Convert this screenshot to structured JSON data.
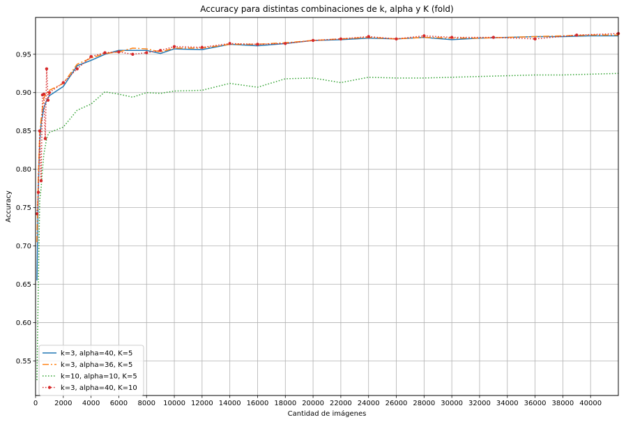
{
  "chart_data": {
    "type": "line",
    "title": "Accuracy para distintas combinaciones de k, alpha y K (fold)",
    "xlabel": "Cantidad de imágenes",
    "ylabel": "Accuracy",
    "xlim": [
      0,
      42000
    ],
    "ylim": [
      0.505,
      0.998
    ],
    "xticks": [
      0,
      2000,
      4000,
      6000,
      8000,
      10000,
      12000,
      14000,
      16000,
      18000,
      20000,
      22000,
      24000,
      26000,
      28000,
      30000,
      32000,
      34000,
      36000,
      38000,
      40000
    ],
    "yticks": [
      0.55,
      0.6,
      0.65,
      0.7,
      0.75,
      0.8,
      0.85,
      0.9,
      0.95
    ],
    "grid": true,
    "legend_position": "lower-left",
    "series": [
      {
        "name": "k=3, alpha=40, K=5",
        "color": "#1f77b4",
        "style": "solid",
        "x": [
          100,
          200,
          300,
          400,
          500,
          600,
          700,
          800,
          900,
          1000,
          2000,
          3000,
          4000,
          5000,
          6000,
          7000,
          8000,
          9000,
          10000,
          12000,
          14000,
          16000,
          18000,
          20000,
          22000,
          24000,
          26000,
          28000,
          30000,
          32000,
          34000,
          36000,
          38000,
          40000,
          42000
        ],
        "y": [
          0.655,
          0.775,
          0.835,
          0.86,
          0.87,
          0.88,
          0.885,
          0.89,
          0.893,
          0.896,
          0.908,
          0.935,
          0.942,
          0.95,
          0.955,
          0.955,
          0.955,
          0.951,
          0.957,
          0.956,
          0.963,
          0.961,
          0.964,
          0.968,
          0.969,
          0.971,
          0.97,
          0.972,
          0.969,
          0.971,
          0.972,
          0.973,
          0.973,
          0.974,
          0.974
        ]
      },
      {
        "name": "k=3, alpha=36, K=5",
        "color": "#ff7f0e",
        "style": "dashdot",
        "x": [
          100,
          200,
          300,
          400,
          500,
          600,
          700,
          800,
          900,
          1000,
          2000,
          3000,
          4000,
          5000,
          6000,
          7000,
          8000,
          9000,
          10000,
          12000,
          14000,
          16000,
          18000,
          20000,
          22000,
          24000,
          26000,
          28000,
          30000,
          32000,
          34000,
          36000,
          38000,
          40000,
          42000
        ],
        "y": [
          0.705,
          0.79,
          0.845,
          0.865,
          0.88,
          0.893,
          0.897,
          0.9,
          0.9,
          0.903,
          0.912,
          0.937,
          0.945,
          0.951,
          0.953,
          0.958,
          0.957,
          0.953,
          0.958,
          0.958,
          0.963,
          0.963,
          0.965,
          0.968,
          0.97,
          0.972,
          0.97,
          0.972,
          0.971,
          0.971,
          0.972,
          0.973,
          0.974,
          0.975,
          0.975
        ]
      },
      {
        "name": "k=10, alpha=10, K=5",
        "color": "#2ca02c",
        "style": "dotted",
        "x": [
          100,
          200,
          300,
          400,
          500,
          600,
          700,
          800,
          900,
          1000,
          2000,
          3000,
          4000,
          5000,
          6000,
          7000,
          8000,
          9000,
          10000,
          12000,
          14000,
          16000,
          18000,
          20000,
          22000,
          24000,
          26000,
          28000,
          30000,
          32000,
          34000,
          36000,
          38000,
          40000,
          42000
        ],
        "y": [
          0.525,
          0.65,
          0.76,
          0.775,
          0.8,
          0.82,
          0.83,
          0.84,
          0.845,
          0.848,
          0.855,
          0.877,
          0.885,
          0.901,
          0.898,
          0.894,
          0.9,
          0.899,
          0.902,
          0.903,
          0.912,
          0.907,
          0.918,
          0.919,
          0.913,
          0.92,
          0.919,
          0.919,
          0.92,
          0.921,
          0.922,
          0.923,
          0.923,
          0.924,
          0.925
        ]
      },
      {
        "name": "k=3, alpha=40, K=10",
        "color": "#d62728",
        "style": "dotted-markers",
        "x": [
          100,
          200,
          300,
          400,
          500,
          600,
          700,
          800,
          900,
          1000,
          2000,
          3000,
          4000,
          5000,
          6000,
          7000,
          8000,
          9000,
          10000,
          12000,
          14000,
          16000,
          18000,
          20000,
          22000,
          24000,
          26000,
          28000,
          30000,
          33000,
          36000,
          39000,
          42000
        ],
        "y": [
          0.742,
          0.77,
          0.85,
          0.785,
          0.897,
          0.898,
          0.84,
          0.931,
          0.89,
          0.9,
          0.913,
          0.931,
          0.947,
          0.952,
          0.953,
          0.95,
          0.952,
          0.955,
          0.96,
          0.959,
          0.964,
          0.963,
          0.964,
          0.968,
          0.97,
          0.973,
          0.97,
          0.974,
          0.972,
          0.972,
          0.97,
          0.975,
          0.977
        ]
      }
    ]
  }
}
